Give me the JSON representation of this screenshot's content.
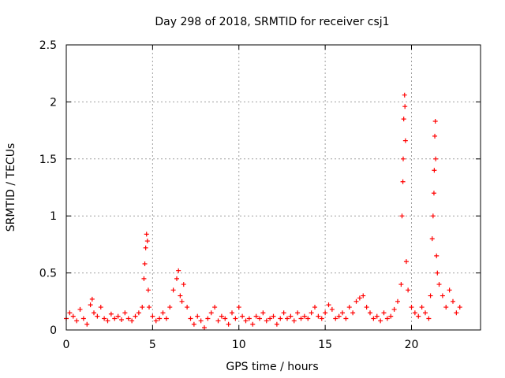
{
  "chart_data": {
    "type": "scatter",
    "title": "Day 298 of 2018, SRMTID for receiver csj1",
    "xlabel": "GPS time / hours",
    "ylabel": "SRMTID / TECUs",
    "xlim": [
      0,
      24
    ],
    "ylim": [
      0,
      2.5
    ],
    "xticks": [
      0,
      5,
      10,
      15,
      20
    ],
    "xtick_labels": [
      "0",
      "5",
      "10",
      "15",
      "20"
    ],
    "yticks": [
      0,
      0.5,
      1,
      1.5,
      2,
      2.5
    ],
    "ytick_labels": [
      "0",
      "0.5",
      "1",
      "1.5",
      "2",
      "2.5"
    ],
    "grid": true,
    "marker": "+",
    "series": [
      {
        "name": "SRMTID",
        "color": "#ff0000",
        "x": [
          0.0,
          0.2,
          0.4,
          0.6,
          0.8,
          1.0,
          1.2,
          1.4,
          1.5,
          1.6,
          1.8,
          2.0,
          2.2,
          2.4,
          2.6,
          2.8,
          3.0,
          3.2,
          3.4,
          3.6,
          3.8,
          4.0,
          4.2,
          4.4,
          4.5,
          4.55,
          4.6,
          4.65,
          4.7,
          4.75,
          4.8,
          5.0,
          5.2,
          5.4,
          5.6,
          5.8,
          6.0,
          6.2,
          6.4,
          6.5,
          6.6,
          6.7,
          6.8,
          7.0,
          7.2,
          7.4,
          7.6,
          7.8,
          8.0,
          8.2,
          8.4,
          8.6,
          8.8,
          9.0,
          9.2,
          9.4,
          9.6,
          9.8,
          10.0,
          10.2,
          10.4,
          10.6,
          10.8,
          11.0,
          11.2,
          11.4,
          11.6,
          11.8,
          12.0,
          12.2,
          12.4,
          12.6,
          12.8,
          13.0,
          13.2,
          13.4,
          13.6,
          13.8,
          14.0,
          14.2,
          14.4,
          14.6,
          14.8,
          15.0,
          15.2,
          15.4,
          15.6,
          15.8,
          16.0,
          16.2,
          16.4,
          16.6,
          16.8,
          17.0,
          17.2,
          17.4,
          17.6,
          17.8,
          18.0,
          18.2,
          18.4,
          18.6,
          18.8,
          19.0,
          19.2,
          19.4,
          19.45,
          19.5,
          19.52,
          19.55,
          19.6,
          19.62,
          19.65,
          19.7,
          19.8,
          20.0,
          20.2,
          20.4,
          20.6,
          20.8,
          21.0,
          21.1,
          21.2,
          21.25,
          21.3,
          21.32,
          21.35,
          21.38,
          21.4,
          21.45,
          21.5,
          21.6,
          21.8,
          22.0,
          22.2,
          22.4,
          22.6,
          22.8
        ],
        "values": [
          0.1,
          0.15,
          0.12,
          0.08,
          0.18,
          0.1,
          0.05,
          0.22,
          0.27,
          0.15,
          0.12,
          0.2,
          0.1,
          0.08,
          0.14,
          0.1,
          0.12,
          0.09,
          0.15,
          0.1,
          0.08,
          0.12,
          0.15,
          0.2,
          0.45,
          0.58,
          0.72,
          0.84,
          0.78,
          0.35,
          0.2,
          0.12,
          0.08,
          0.1,
          0.15,
          0.1,
          0.2,
          0.35,
          0.45,
          0.52,
          0.3,
          0.25,
          0.4,
          0.2,
          0.1,
          0.05,
          0.12,
          0.08,
          0.02,
          0.1,
          0.15,
          0.2,
          0.08,
          0.12,
          0.1,
          0.05,
          0.15,
          0.1,
          0.2,
          0.12,
          0.08,
          0.1,
          0.05,
          0.12,
          0.1,
          0.15,
          0.08,
          0.1,
          0.12,
          0.05,
          0.1,
          0.15,
          0.1,
          0.12,
          0.08,
          0.15,
          0.1,
          0.12,
          0.1,
          0.15,
          0.2,
          0.12,
          0.1,
          0.15,
          0.22,
          0.18,
          0.1,
          0.12,
          0.15,
          0.1,
          0.2,
          0.15,
          0.25,
          0.28,
          0.3,
          0.2,
          0.15,
          0.1,
          0.12,
          0.08,
          0.15,
          0.1,
          0.12,
          0.18,
          0.25,
          0.4,
          1.0,
          1.3,
          1.5,
          1.85,
          2.06,
          1.96,
          1.66,
          0.6,
          0.35,
          0.2,
          0.15,
          0.12,
          0.2,
          0.15,
          0.1,
          0.3,
          0.8,
          1.0,
          1.2,
          1.4,
          1.7,
          1.83,
          1.5,
          0.65,
          0.5,
          0.4,
          0.3,
          0.2,
          0.35,
          0.25,
          0.15,
          0.2
        ]
      }
    ]
  }
}
